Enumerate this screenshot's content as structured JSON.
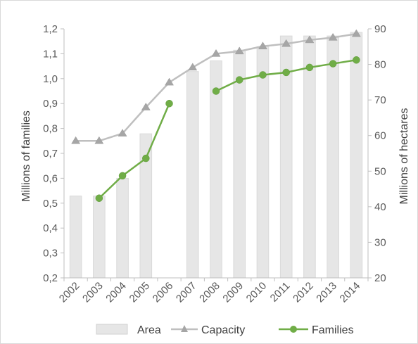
{
  "chart_data": {
    "type": "bar+line",
    "title": "",
    "categories": [
      "2002",
      "2003",
      "2004",
      "2005",
      "2006",
      "2007",
      "2008",
      "2009",
      "2010",
      "2011",
      "2012",
      "2013",
      "2014"
    ],
    "y_left": {
      "label": "Millions of families",
      "range": [
        0.2,
        1.2
      ],
      "ticks": [
        "0,2",
        "0,3",
        "0,4",
        "0,5",
        "0,6",
        "0,7",
        "0,8",
        "0,9",
        "1,0",
        "1,1",
        "1,2"
      ]
    },
    "y_right": {
      "label": "Millions of hectares",
      "range": [
        20,
        90
      ],
      "ticks": [
        "20",
        "30",
        "40",
        "50",
        "60",
        "70",
        "80",
        "90"
      ]
    },
    "series": [
      {
        "name": "Area",
        "kind": "bar",
        "axis": "right",
        "color": "#e6e6e6",
        "values": [
          43,
          43,
          48,
          60.5,
          null,
          78,
          81,
          84,
          85,
          88,
          88,
          88,
          89
        ]
      },
      {
        "name": "Capacity",
        "kind": "line",
        "axis": "left",
        "marker": "triangle",
        "color": "#bfbfbf",
        "values": [
          0.75,
          0.75,
          0.78,
          0.885,
          0.985,
          1.045,
          1.1,
          1.11,
          1.13,
          1.14,
          1.155,
          1.165,
          1.18
        ]
      },
      {
        "name": "Families",
        "kind": "line",
        "axis": "left",
        "marker": "circle",
        "color": "#70ad47",
        "values": [
          null,
          0.52,
          0.61,
          0.68,
          0.9,
          null,
          0.95,
          0.995,
          1.015,
          1.025,
          1.045,
          1.06,
          1.075
        ]
      }
    ],
    "grid": false,
    "legend": "bottom"
  }
}
